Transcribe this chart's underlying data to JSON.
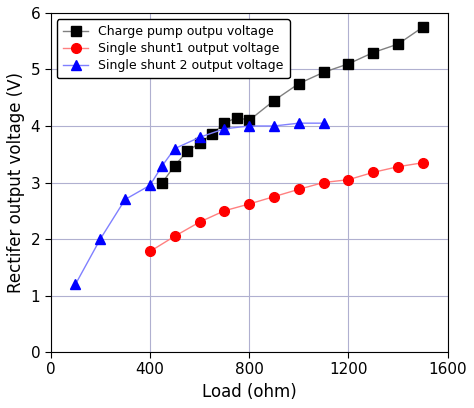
{
  "charge_pump": {
    "x": [
      450,
      500,
      550,
      600,
      650,
      700,
      750,
      800,
      900,
      1000,
      1100,
      1200,
      1300,
      1400,
      1500
    ],
    "y": [
      3.0,
      3.3,
      3.55,
      3.7,
      3.85,
      4.05,
      4.15,
      4.1,
      4.45,
      4.75,
      4.95,
      5.1,
      5.3,
      5.45,
      5.75
    ],
    "line_color": "#808080",
    "marker_color": "#000000",
    "marker": "s",
    "label": "Charge pump outpu voltage"
  },
  "single_shunt1": {
    "x": [
      400,
      500,
      600,
      700,
      800,
      900,
      1000,
      1100,
      1200,
      1300,
      1400,
      1500
    ],
    "y": [
      1.78,
      2.05,
      2.3,
      2.5,
      2.62,
      2.75,
      2.88,
      3.0,
      3.05,
      3.18,
      3.28,
      3.35
    ],
    "line_color": "#ff8080",
    "marker_color": "#ff0000",
    "marker": "o",
    "label": "Single shunt1 output voltage"
  },
  "single_shunt2": {
    "x": [
      100,
      200,
      300,
      400,
      450,
      500,
      600,
      700,
      800,
      900,
      1000,
      1100
    ],
    "y": [
      1.2,
      2.0,
      2.7,
      2.95,
      3.3,
      3.6,
      3.8,
      3.95,
      4.0,
      4.0,
      4.05,
      4.05
    ],
    "line_color": "#8080ff",
    "marker_color": "#0000ff",
    "marker": "^",
    "label": "Single shunt 2 output voltage"
  },
  "xlim": [
    0,
    1600
  ],
  "ylim": [
    0,
    6
  ],
  "xlabel": "Load (ohm)",
  "ylabel": "Rectifer output voltage (V)",
  "xticks": [
    0,
    400,
    800,
    1200,
    1600
  ],
  "yticks": [
    0,
    1,
    2,
    3,
    4,
    5,
    6
  ],
  "grid_color": "#b0b0d0",
  "legend_loc": "upper left",
  "figsize": [
    4.74,
    4.08
  ],
  "dpi": 100,
  "markersize": 7,
  "linewidth": 1.0,
  "tick_fontsize": 11,
  "label_fontsize": 12,
  "legend_fontsize": 9
}
